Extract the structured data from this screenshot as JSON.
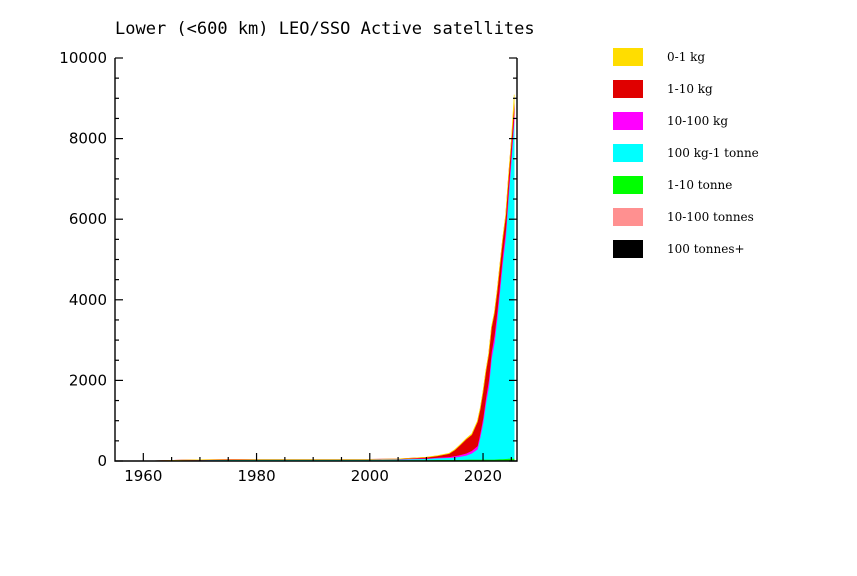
{
  "chart_data": {
    "type": "area",
    "title": "Lower (<600 km) LEO/SSO Active satellites",
    "xlabel": "",
    "ylabel": "",
    "xlim": [
      1955,
      2026
    ],
    "ylim": [
      0,
      10000
    ],
    "x_ticks": [
      1960,
      1980,
      2000,
      2020
    ],
    "y_ticks": [
      0,
      2000,
      4000,
      6000,
      8000,
      10000
    ],
    "stacked": true,
    "grid": false,
    "legend_position": "right",
    "x": [
      1957,
      1962,
      1967,
      1970,
      1975,
      1980,
      1985,
      1990,
      1995,
      2000,
      2005,
      2008,
      2010,
      2012,
      2014,
      2015,
      2016,
      2017,
      2018,
      2019,
      2019.5,
      2020,
      2020.5,
      2021,
      2021.5,
      2022,
      2022.5,
      2023,
      2023.5,
      2024,
      2024.5,
      2025,
      2025.5
    ],
    "series": [
      {
        "name": "0-1 kg",
        "color": "#ffdd00",
        "values": [
          0,
          0,
          0,
          0,
          0,
          0,
          0,
          0,
          0,
          0,
          0,
          0,
          2,
          5,
          8,
          10,
          12,
          15,
          20,
          20,
          20,
          20,
          20,
          20,
          20,
          20,
          20,
          20,
          20,
          20,
          20,
          20,
          200
        ]
      },
      {
        "name": "1-10 kg",
        "color": "#e00000",
        "values": [
          0,
          0,
          0,
          0,
          0,
          0,
          0,
          0,
          0,
          0,
          5,
          15,
          25,
          40,
          80,
          150,
          250,
          350,
          400,
          600,
          600,
          650,
          650,
          650,
          600,
          550,
          500,
          450,
          400,
          350,
          300,
          280,
          250
        ]
      },
      {
        "name": "10-100 kg",
        "color": "#ff00ff",
        "values": [
          0,
          0,
          2,
          3,
          4,
          5,
          5,
          5,
          5,
          5,
          5,
          8,
          10,
          15,
          20,
          30,
          40,
          50,
          60,
          80,
          100,
          120,
          140,
          160,
          170,
          180,
          180,
          180,
          180,
          180,
          180,
          180,
          180
        ]
      },
      {
        "name": "100 kg-1 tonne",
        "color": "#00ffff",
        "values": [
          0,
          0,
          5,
          8,
          10,
          15,
          15,
          15,
          15,
          15,
          20,
          25,
          30,
          40,
          50,
          60,
          80,
          100,
          150,
          250,
          550,
          900,
          1400,
          1800,
          2500,
          2900,
          3500,
          4200,
          4900,
          5500,
          6500,
          7400,
          8400
        ]
      },
      {
        "name": "1-10 tonne",
        "color": "#00ff00",
        "values": [
          0,
          5,
          15,
          20,
          20,
          20,
          20,
          20,
          20,
          20,
          20,
          25,
          25,
          30,
          30,
          30,
          30,
          35,
          40,
          40,
          40,
          40,
          40,
          40,
          40,
          40,
          45,
          50,
          50,
          55,
          60,
          60,
          60
        ]
      },
      {
        "name": "10-100 tonnes",
        "color": "#ff9090",
        "values": [
          0,
          0,
          0,
          0,
          2,
          2,
          2,
          2,
          2,
          2,
          2,
          2,
          2,
          2,
          2,
          2,
          2,
          2,
          2,
          2,
          2,
          2,
          2,
          2,
          2,
          2,
          2,
          2,
          2,
          2,
          2,
          2,
          2
        ]
      },
      {
        "name": "100 tonnes+",
        "color": "#000000",
        "values": [
          0,
          0,
          0,
          0,
          0,
          0,
          0,
          0,
          0,
          1,
          1,
          1,
          1,
          1,
          1,
          1,
          1,
          1,
          1,
          1,
          1,
          1,
          1,
          1,
          1,
          1,
          1,
          1,
          1,
          1,
          1,
          1,
          1
        ]
      }
    ]
  }
}
